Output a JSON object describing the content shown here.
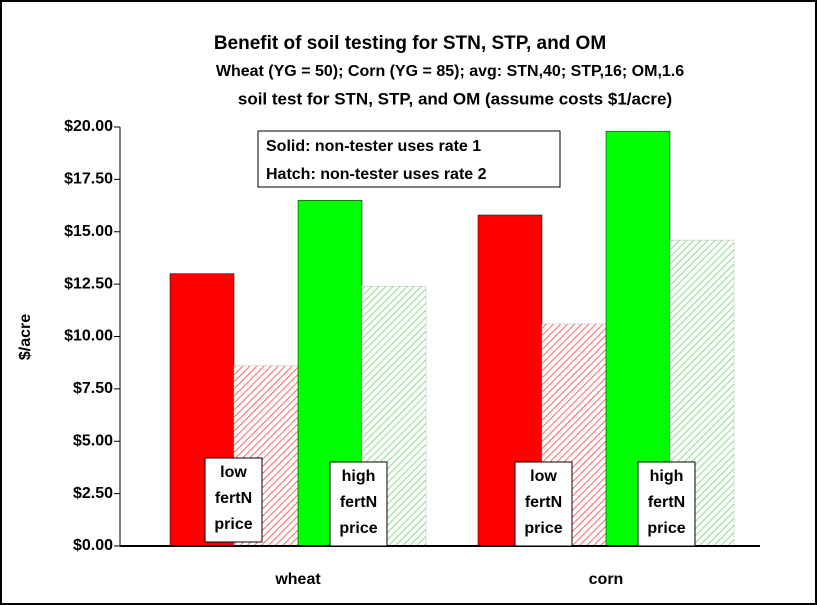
{
  "chart_data": {
    "type": "bar",
    "title": "Benefit of soil testing for STN, STP, and OM",
    "subtitles": [
      "Wheat (YG = 50); Corn (YG = 85); avg: STN,40; STP,16; OM,1.6",
      "soil test for STN, STP, and OM (assume costs $1/acre)"
    ],
    "ylabel": "$/acre",
    "categories": [
      "wheat",
      "corn"
    ],
    "series": [
      {
        "color": "#ff0000",
        "fill": "solid",
        "values": [
          13.0,
          15.8
        ]
      },
      {
        "color": "#ff6666",
        "fill": "hatch",
        "values": [
          8.6,
          10.6
        ]
      },
      {
        "color": "#00ff00",
        "fill": "solid",
        "values": [
          16.5,
          19.8
        ]
      },
      {
        "color": "#88dd88",
        "fill": "hatch",
        "values": [
          12.4,
          14.6
        ]
      }
    ],
    "ylim": [
      0,
      20
    ],
    "yticks": [
      {
        "value": 0,
        "label": "$0.00"
      },
      {
        "value": 2.5,
        "label": "$2.50"
      },
      {
        "value": 5,
        "label": "$5.00"
      },
      {
        "value": 7.5,
        "label": "$7.50"
      },
      {
        "value": 10,
        "label": "$10.00"
      },
      {
        "value": 12.5,
        "label": "$12.50"
      },
      {
        "value": 15,
        "label": "$15.00"
      },
      {
        "value": 17.5,
        "label": "$17.50"
      },
      {
        "value": 20,
        "label": "$20.00"
      }
    ],
    "grid": false,
    "legend_note": [
      "Solid:  non-tester uses rate 1",
      "Hatch: non-tester uses rate 2"
    ],
    "annotations": [
      {
        "lines": [
          "low",
          "fertN",
          "price"
        ]
      },
      {
        "lines": [
          "high",
          "fertN",
          "price"
        ]
      },
      {
        "lines": [
          "low",
          "fertN",
          "price"
        ]
      },
      {
        "lines": [
          "high",
          "fertN",
          "price"
        ]
      }
    ]
  }
}
